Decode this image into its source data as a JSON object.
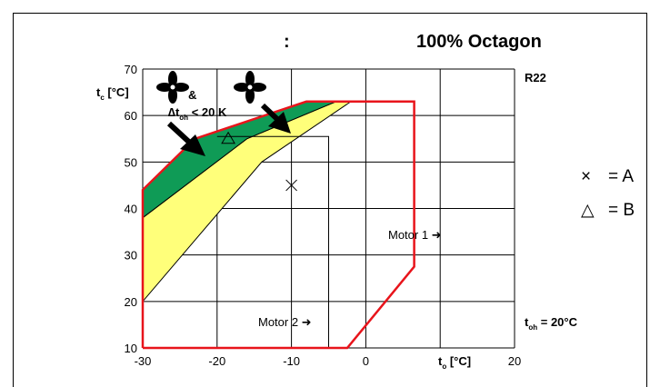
{
  "title_prefix": ":",
  "title": "100% Octagon",
  "refrigerant": "R22",
  "ylabel_main": "t",
  "ylabel_sub": "c",
  "ylabel_unit": " [°C]",
  "xlabel_main": "t",
  "xlabel_sub": "o",
  "xlabel_unit": " [°C]",
  "toh_main": "t",
  "toh_sub": "oh",
  "toh_value": " = 20°C",
  "annotation_fan_and": "&",
  "annotation_delta": "∆t",
  "annotation_delta_sub": "oh",
  "annotation_delta_value": " < 20 K",
  "motor1_label": "Motor 1 ➜",
  "motor2_label": "Motor 2 ➜",
  "legend": [
    {
      "symbol": "×",
      "label": "= A"
    },
    {
      "symbol": "△",
      "label": "= B"
    }
  ],
  "colors": {
    "envelope": "#e8141b",
    "green": "#0f9b56",
    "yellow": "#ffff7a",
    "grid": "#000000"
  },
  "chart_data": {
    "type": "scatter",
    "xlim": [
      -30,
      20
    ],
    "ylim": [
      10,
      70
    ],
    "xticks": [
      -30,
      -20,
      -10,
      0,
      10,
      20
    ],
    "xtick_labels": [
      "-30",
      "-20",
      "-10",
      "0",
      "",
      "20"
    ],
    "yticks": [
      10,
      20,
      30,
      40,
      50,
      60,
      70
    ],
    "grid": true,
    "envelope_outline": [
      [
        -30,
        10
      ],
      [
        -2.5,
        10
      ],
      [
        6.5,
        27.5
      ],
      [
        6.5,
        63
      ],
      [
        -8,
        63
      ],
      [
        -23,
        55
      ],
      [
        -30,
        44
      ],
      [
        -30,
        10
      ]
    ],
    "green_region": [
      [
        -30,
        44
      ],
      [
        -23,
        55
      ],
      [
        -8,
        63
      ],
      [
        -4,
        63
      ],
      [
        -16,
        55
      ],
      [
        -30,
        38
      ]
    ],
    "yellow_region": [
      [
        -30,
        38
      ],
      [
        -16,
        55
      ],
      [
        -4,
        63
      ],
      [
        -2,
        63
      ],
      [
        -14,
        50
      ],
      [
        -22,
        35
      ],
      [
        -30,
        20
      ]
    ],
    "motor2_boundary": [
      [
        -20,
        55.5
      ],
      [
        -5,
        55.5
      ],
      [
        -5,
        10
      ]
    ],
    "points": [
      {
        "series": "A",
        "marker": "x",
        "x": -10,
        "y": 45
      },
      {
        "series": "B",
        "marker": "triangle",
        "x": -18.5,
        "y": 55
      }
    ]
  }
}
